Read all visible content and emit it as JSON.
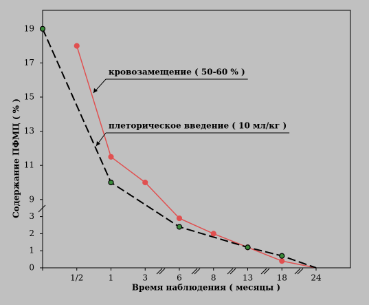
{
  "chart_data": {
    "type": "line",
    "x_label": "Время наблюдения  ( месяцы )",
    "y_label": "Содержание  ПФМЦ ( % )",
    "categories": [
      null,
      "1/2",
      "1",
      "3",
      "6",
      "8",
      "13",
      "18",
      "24"
    ],
    "series": [
      {
        "name": "кровозамещение ( 50-60 % )",
        "color": "#e05050",
        "marker_color": "#e05050",
        "dash": false,
        "x": [
          1,
          2,
          3,
          4,
          5,
          6,
          7,
          8
        ],
        "values": [
          18,
          11.5,
          10,
          2.9,
          2.0,
          1.2,
          0.4,
          0
        ]
      },
      {
        "name": "плеторическое  введение ( 10 мл/кг )",
        "color": "#000000",
        "marker_color": "#3a8a3a",
        "dash": true,
        "x": [
          0,
          2,
          4,
          6,
          7,
          8
        ],
        "values": [
          19,
          10,
          2.4,
          1.2,
          0.7,
          0
        ]
      }
    ],
    "ylim": [
      0,
      20
    ],
    "ybreak": [
      3,
      9
    ],
    "yticks": [
      0,
      1,
      2,
      3,
      9,
      11,
      13,
      15,
      17,
      19
    ]
  }
}
